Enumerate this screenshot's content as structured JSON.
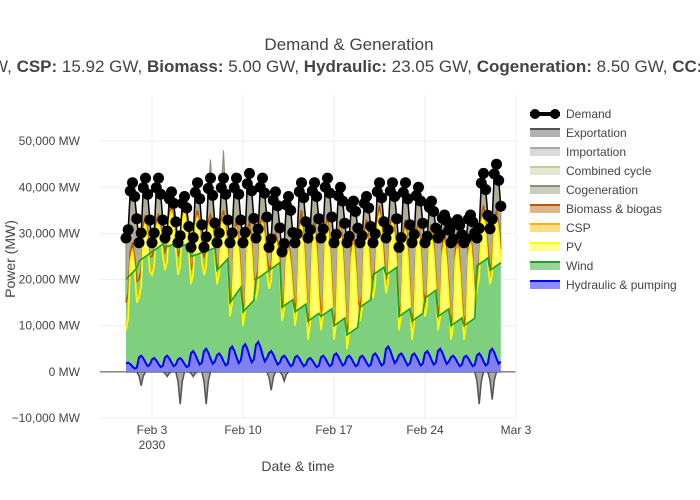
{
  "chart_data": {
    "type": "area",
    "title": "Demand & Generation",
    "subtitle_visible_parts": [
      {
        "text": "W, ",
        "bold": false
      },
      {
        "text": "CSP:",
        "bold": true
      },
      {
        "text": " 15.92 GW, ",
        "bold": false
      },
      {
        "text": "Biomass:",
        "bold": true
      },
      {
        "text": " 5.00 GW, ",
        "bold": false
      },
      {
        "text": "Hydraulic:",
        "bold": true
      },
      {
        "text": " 23.05 GW, ",
        "bold": false
      },
      {
        "text": "Cogeneration:",
        "bold": true
      },
      {
        "text": " 8.50 GW, ",
        "bold": false
      },
      {
        "text": "CC:",
        "bold": true
      }
    ],
    "xlabel": "Date & time",
    "ylabel": "Power (MW)",
    "x_range": [
      "2030-01-30",
      "2030-03-03"
    ],
    "x_ticks": [
      {
        "date": "2030-02-03",
        "label": "Feb 3",
        "sublabel": "2030"
      },
      {
        "date": "2030-02-10",
        "label": "Feb 10"
      },
      {
        "date": "2030-02-17",
        "label": "Feb 17"
      },
      {
        "date": "2030-02-24",
        "label": "Feb 24"
      },
      {
        "date": "2030-03-03",
        "label": "Mar 3"
      }
    ],
    "ylim": [
      -10000,
      60000
    ],
    "y_ticks": [
      {
        "value": -10000,
        "label": "−10,000 MW"
      },
      {
        "value": 0,
        "label": "0 MW"
      },
      {
        "value": 10000,
        "label": "10,000 MW"
      },
      {
        "value": 20000,
        "label": "20,000 MW"
      },
      {
        "value": 30000,
        "label": "30,000 MW"
      },
      {
        "value": 40000,
        "label": "40,000 MW"
      },
      {
        "value": 50000,
        "label": "50,000 MW"
      }
    ],
    "grid": true,
    "legend_position": "right",
    "x": [
      "2030-02-01",
      "2030-02-02",
      "2030-02-03",
      "2030-02-04",
      "2030-02-05",
      "2030-02-06",
      "2030-02-07",
      "2030-02-08",
      "2030-02-09",
      "2030-02-10",
      "2030-02-11",
      "2030-02-12",
      "2030-02-13",
      "2030-02-14",
      "2030-02-15",
      "2030-02-16",
      "2030-02-17",
      "2030-02-18",
      "2030-02-19",
      "2030-02-20",
      "2030-02-21",
      "2030-02-22",
      "2030-02-23",
      "2030-02-24",
      "2030-02-25",
      "2030-02-26",
      "2030-02-27",
      "2030-02-28",
      "2030-03-01"
    ],
    "series": [
      {
        "name": "Demand",
        "color": "#000000",
        "style": "line-markers",
        "daily_low": [
          29000,
          28000,
          28000,
          29000,
          28000,
          27000,
          27000,
          28000,
          28000,
          28000,
          29000,
          27000,
          26000,
          28000,
          29000,
          29000,
          28000,
          28000,
          28000,
          28000,
          29000,
          27000,
          28000,
          28000,
          29000,
          28000,
          28000,
          29000,
          31000
        ],
        "daily_high": [
          41000,
          42000,
          42000,
          39000,
          38000,
          41000,
          42000,
          42000,
          42000,
          43000,
          42000,
          39000,
          38000,
          41000,
          41000,
          42000,
          40000,
          37000,
          38000,
          41000,
          41000,
          41000,
          40000,
          37000,
          34000,
          33000,
          34000,
          43000,
          45000
        ]
      },
      {
        "name": "Exportation",
        "color": "#555555",
        "style": "line",
        "daily_min": [
          0,
          -3000,
          0,
          -1000,
          -7000,
          -1000,
          -7000,
          0,
          0,
          0,
          0,
          -4000,
          -2000,
          0,
          0,
          0,
          0,
          0,
          0,
          0,
          0,
          0,
          0,
          0,
          0,
          0,
          0,
          -7000,
          -6000
        ]
      },
      {
        "name": "Importation",
        "color": "#aaaaaa",
        "style": "line",
        "daily_max": [
          0,
          0,
          0,
          0,
          0,
          0,
          0,
          0,
          0,
          0,
          0,
          0,
          0,
          0,
          0,
          0,
          0,
          0,
          0,
          0,
          0,
          0,
          0,
          0,
          0,
          0,
          0,
          0,
          0
        ]
      },
      {
        "name": "Combined cycle",
        "color": "#c8c8a0",
        "style": "area",
        "daily_max": [
          25000,
          28000,
          28000,
          27000,
          38000,
          47000,
          53000,
          52000,
          44000,
          42000,
          40000,
          35000,
          34000,
          38000,
          37000,
          36000,
          36000,
          34000,
          33000,
          36000,
          36000,
          37000,
          35000,
          33000,
          30000,
          29000,
          30000,
          44000,
          42000
        ]
      },
      {
        "name": "Cogeneration",
        "color": "#8c8c6e",
        "style": "area",
        "daily_max": [
          27000,
          30000,
          30000,
          29000,
          40000,
          49000,
          54000,
          55000,
          45000,
          43000,
          41000,
          36000,
          35000,
          39000,
          38000,
          37000,
          37000,
          35000,
          34000,
          37000,
          37000,
          38000,
          36000,
          34000,
          31000,
          30000,
          31000,
          45000,
          43000
        ]
      },
      {
        "name": "Biomass & biogas",
        "color": "#b35a00",
        "style": "area",
        "daily_low": [
          15000,
          20000,
          25000,
          26000,
          25000,
          22000,
          25000,
          22000,
          15000,
          13000,
          20000,
          22000,
          14000,
          13000,
          10000,
          12000,
          10000,
          8000,
          14000,
          20000,
          20000,
          12000,
          10000,
          15000,
          12000,
          10000,
          10000,
          22000,
          22000
        ],
        "daily_high": [
          28000,
          34000,
          34000,
          36000,
          36000,
          35000,
          34000,
          35000,
          33000,
          33000,
          34000,
          30000,
          28000,
          35000,
          33000,
          34000,
          33000,
          30000,
          33000,
          36000,
          34000,
          33000,
          33000,
          32000,
          30000,
          29000,
          30000,
          36000,
          35000
        ]
      },
      {
        "name": "CSP",
        "color": "#ffb000",
        "style": "area",
        "daily_low": [
          10000,
          17000,
          22000,
          23000,
          22000,
          20000,
          22000,
          20000,
          13000,
          11000,
          17000,
          19000,
          12000,
          11000,
          8000,
          10000,
          8000,
          6000,
          12000,
          17000,
          18000,
          10000,
          8000,
          13000,
          10000,
          8000,
          8000,
          19000,
          20000
        ]
      },
      {
        "name": "PV",
        "color": "#ffff00",
        "style": "area",
        "daily_low": [
          9000,
          16000,
          21000,
          22000,
          21000,
          19000,
          21000,
          19000,
          12000,
          10000,
          16000,
          18000,
          11000,
          10000,
          7000,
          9000,
          7000,
          5000,
          11000,
          16000,
          17000,
          9000,
          7000,
          12000,
          9000,
          7000,
          7000,
          18000,
          19000
        ]
      },
      {
        "name": "Wind",
        "color": "#1fa01f",
        "style": "area",
        "daily_low": [
          20000,
          24000,
          26000,
          27000,
          27000,
          25000,
          26000,
          22000,
          15000,
          13000,
          20000,
          22000,
          14000,
          13000,
          11000,
          12000,
          10000,
          8000,
          14000,
          21000,
          21000,
          12000,
          11000,
          16000,
          12000,
          10000,
          10000,
          23000,
          22000
        ],
        "daily_high": [
          23000,
          26000,
          28000,
          28000,
          28000,
          26000,
          27000,
          25000,
          19000,
          16000,
          22000,
          24000,
          16000,
          15000,
          13000,
          14000,
          12000,
          10000,
          16000,
          23000,
          23000,
          14000,
          13000,
          18000,
          14000,
          12000,
          12000,
          25000,
          24000
        ]
      },
      {
        "name": "Hydraulic & pumping",
        "color": "#0000ff",
        "style": "area",
        "daily_high": [
          2000,
          3500,
          3000,
          3500,
          3000,
          4500,
          5000,
          4000,
          5500,
          6000,
          6500,
          4500,
          3500,
          3500,
          3000,
          3500,
          4000,
          3500,
          3500,
          4000,
          5500,
          4000,
          4000,
          4500,
          5000,
          3500,
          3500,
          4000,
          5000
        ]
      }
    ]
  },
  "legend_items": [
    {
      "name": "Demand",
      "color": "#000000",
      "kind": "line-marker"
    },
    {
      "name": "Exportation",
      "color": "#555555",
      "kind": "fill"
    },
    {
      "name": "Importation",
      "color": "#aaaaaa",
      "kind": "fill"
    },
    {
      "name": "Combined cycle",
      "color": "#c8c8a0",
      "kind": "fill"
    },
    {
      "name": "Cogeneration",
      "color": "#8c8c6e",
      "kind": "fill"
    },
    {
      "name": "Biomass & biogas",
      "color": "#b35a00",
      "kind": "fill"
    },
    {
      "name": "CSP",
      "color": "#ffb000",
      "kind": "fill"
    },
    {
      "name": "PV",
      "color": "#ffff00",
      "kind": "fill"
    },
    {
      "name": "Wind",
      "color": "#1fa01f",
      "kind": "fill"
    },
    {
      "name": "Hydraulic & pumping",
      "color": "#0000ff",
      "kind": "fill"
    }
  ]
}
